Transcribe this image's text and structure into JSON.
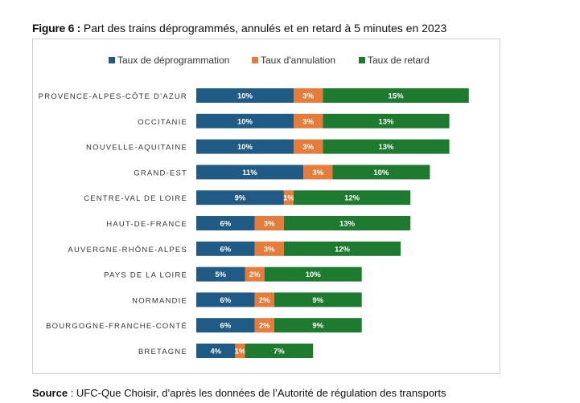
{
  "figure": {
    "title_lead": "Figure 6 :",
    "title_text": " Part des trains déprogrammés, annulés et en retard à 5 minutes en 2023"
  },
  "source": {
    "lead": "Source",
    "text": " : UFC-Que Choisir, d’après les données de l’Autorité de régulation des transports"
  },
  "colors": {
    "deprogrammation": "#1f5b85",
    "annulation": "#e67c3c",
    "retard": "#1e7a2e",
    "label_on_bar": "#ffffff"
  },
  "chart_data": {
    "type": "bar",
    "orientation": "horizontal",
    "stacked": true,
    "legend_position": "top",
    "grid": false,
    "categories": [
      "PROVENCE-ALPES-CÔTE D’AZUR",
      "OCCITANIE",
      "NOUVELLE-AQUITAINE",
      "GRAND-EST",
      "CENTRE-VAL DE LOIRE",
      "HAUT-DE-FRANCE",
      "AUVERGNE-RHÔNE-ALPES",
      "PAYS DE LA LOIRE",
      "NORMANDIE",
      "BOURGOGNE-FRANCHE-CONTÉ",
      "BRETAGNE"
    ],
    "series": [
      {
        "name": "Taux de déprogrammation",
        "color_key": "deprogrammation",
        "values": [
          10,
          10,
          10,
          11,
          9,
          6,
          6,
          5,
          6,
          6,
          4
        ]
      },
      {
        "name": "Taux d'annulation",
        "color_key": "annulation",
        "values": [
          3,
          3,
          3,
          3,
          1,
          3,
          3,
          2,
          2,
          2,
          1
        ]
      },
      {
        "name": "Taux de retard",
        "color_key": "retard",
        "values": [
          15,
          13,
          13,
          10,
          12,
          13,
          12,
          10,
          9,
          9,
          7
        ]
      }
    ],
    "value_suffix": "%"
  }
}
